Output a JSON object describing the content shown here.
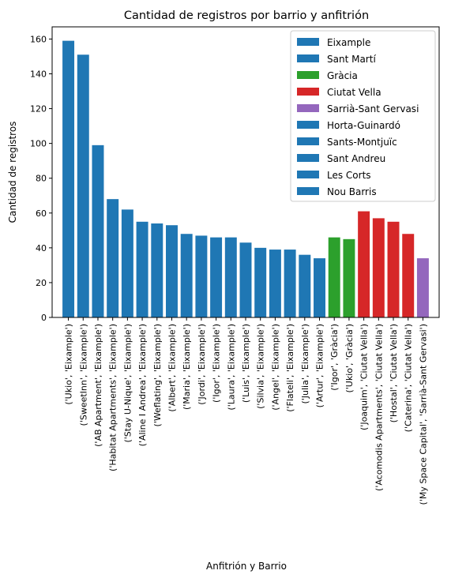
{
  "chart_data": {
    "type": "bar",
    "title": "Cantidad de registros por barrio y anfitrión",
    "xlabel": "Anfitrión y Barrio",
    "ylabel": "Cantidad de registros",
    "ylim": [
      0,
      167
    ],
    "yticks": [
      0,
      20,
      40,
      60,
      80,
      100,
      120,
      140,
      160
    ],
    "grid": false,
    "legend_position": "top-right",
    "categories": [
      "('Ukio', 'Eixample')",
      "('SweetInn', 'Eixample')",
      "('AB Apartment', 'Eixample')",
      "('Habitat Apartments', 'Eixample')",
      "('Stay U-Nique', 'Eixample')",
      "('Aline I Andrea', 'Eixample')",
      "('Weflating', 'Eixample')",
      "('Albert', 'Eixample')",
      "('Maria', 'Eixample')",
      "('Jordi', 'Eixample')",
      "('Igor', 'Eixample')",
      "('Laura', 'Eixample')",
      "('Luis', 'Eixample')",
      "('Silvia', 'Eixample')",
      "('Angel', 'Eixample')",
      "('Flateli', 'Eixample')",
      "('Julia', 'Eixample')",
      "('Artur', 'Eixample')",
      "('Igor', 'Gràcia')",
      "('Ukio', 'Gràcia')",
      "('Joaquim', 'Ciutat Vella')",
      "('Acomodis Apartments', 'Ciutat Vella')",
      "('Hostal', 'Ciutat Vella')",
      "('Caterina', 'Ciutat Vella')",
      "('My Space Capital', 'Sarrià-Sant Gervasi')"
    ],
    "values": [
      159,
      151,
      99,
      68,
      62,
      55,
      54,
      53,
      48,
      47,
      46,
      46,
      43,
      40,
      39,
      39,
      36,
      34,
      46,
      45,
      61,
      57,
      55,
      48,
      34
    ],
    "bar_series": [
      0,
      0,
      0,
      0,
      0,
      0,
      0,
      0,
      0,
      0,
      0,
      0,
      0,
      0,
      0,
      0,
      0,
      0,
      2,
      2,
      3,
      3,
      3,
      3,
      4
    ],
    "series": [
      {
        "name": "Eixample",
        "color": "#1f77b4"
      },
      {
        "name": "Sant Martí",
        "color": "#1f77b4"
      },
      {
        "name": "Gràcia",
        "color": "#2ca02c"
      },
      {
        "name": "Ciutat Vella",
        "color": "#d62728"
      },
      {
        "name": "Sarrià-Sant Gervasi",
        "color": "#9467bd"
      },
      {
        "name": "Horta-Guinardó",
        "color": "#1f77b4"
      },
      {
        "name": "Sants-Montjuïc",
        "color": "#1f77b4"
      },
      {
        "name": "Sant Andreu",
        "color": "#1f77b4"
      },
      {
        "name": "Les Corts",
        "color": "#1f77b4"
      },
      {
        "name": "Nou Barris",
        "color": "#1f77b4"
      }
    ]
  }
}
